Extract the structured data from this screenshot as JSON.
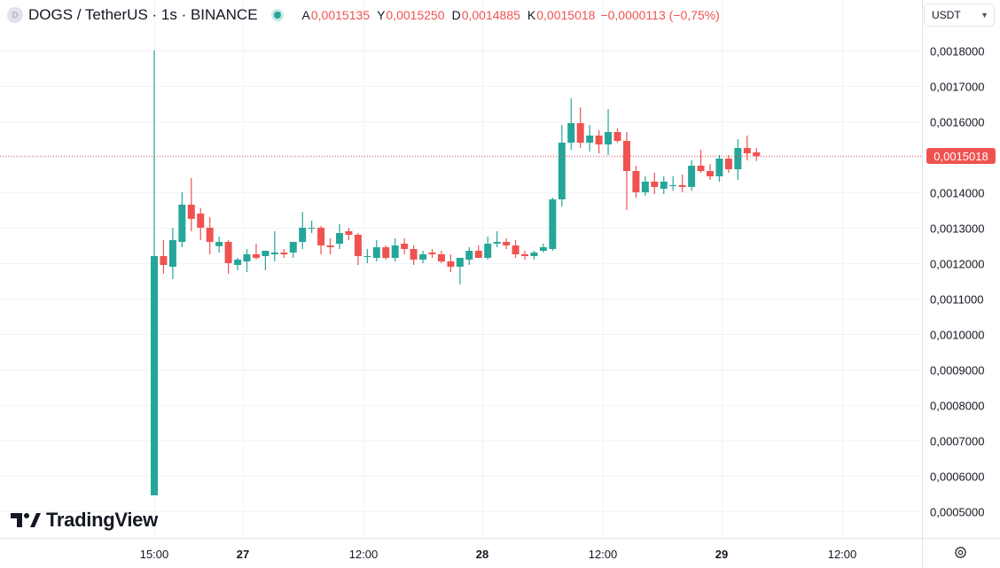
{
  "legend": {
    "logo_text": "D",
    "symbol": "DOGS / TetherUS · 1s · BINANCE",
    "open_label": "A",
    "open": "0,0015135",
    "high_label": "Y",
    "high": "0,0015250",
    "low_label": "D",
    "low": "0,0014885",
    "close_label": "K",
    "close": "0,0015018",
    "change": "−0,0000113 (−0,75%)"
  },
  "currency": "USDT",
  "brand": "TradingView",
  "last_price_label": "0,0015018",
  "colors": {
    "up": "#26a69a",
    "down": "#ef5350",
    "grid": "#f0f3fa",
    "axis_text": "#131722"
  },
  "price_ticks": [
    "0,0018000",
    "0,0017000",
    "0,0016000",
    "0,0015000",
    "0,0014000",
    "0,0013000",
    "0,0012000",
    "0,0011000",
    "0,0010000",
    "0,0009000",
    "0,0008000",
    "0,0007000",
    "0,0006000",
    "0,0005000"
  ],
  "time_ticks": [
    {
      "label": "15:00",
      "bold": false
    },
    {
      "label": "27",
      "bold": true
    },
    {
      "label": "12:00",
      "bold": false
    },
    {
      "label": "28",
      "bold": true
    },
    {
      "label": "12:00",
      "bold": false
    },
    {
      "label": "29",
      "bold": true
    },
    {
      "label": "12:00",
      "bold": false
    }
  ],
  "chart_data": {
    "type": "candlestick",
    "title": "DOGS / TetherUS · 1s · BINANCE",
    "ylim": [
      0.0004,
      0.0019
    ],
    "last_price": 0.0015018,
    "candles": [
      {
        "o": 0.000545,
        "h": 0.0018,
        "l": 0.000545,
        "c": 0.00122
      },
      {
        "o": 0.00122,
        "h": 0.001265,
        "l": 0.00117,
        "c": 0.001195
      },
      {
        "o": 0.00119,
        "h": 0.0013,
        "l": 0.001155,
        "c": 0.001265
      },
      {
        "o": 0.00126,
        "h": 0.0014,
        "l": 0.001245,
        "c": 0.001365
      },
      {
        "o": 0.001365,
        "h": 0.00144,
        "l": 0.00129,
        "c": 0.001325
      },
      {
        "o": 0.00134,
        "h": 0.001355,
        "l": 0.001265,
        "c": 0.0013
      },
      {
        "o": 0.0013,
        "h": 0.00133,
        "l": 0.001225,
        "c": 0.00126
      },
      {
        "o": 0.001248,
        "h": 0.001275,
        "l": 0.00123,
        "c": 0.00126
      },
      {
        "o": 0.00126,
        "h": 0.001265,
        "l": 0.00117,
        "c": 0.0012
      },
      {
        "o": 0.001195,
        "h": 0.001215,
        "l": 0.00118,
        "c": 0.00121
      },
      {
        "o": 0.001205,
        "h": 0.00124,
        "l": 0.001175,
        "c": 0.001225
      },
      {
        "o": 0.001225,
        "h": 0.001255,
        "l": 0.00121,
        "c": 0.001215
      },
      {
        "o": 0.00122,
        "h": 0.001235,
        "l": 0.00118,
        "c": 0.001235
      },
      {
        "o": 0.001225,
        "h": 0.00129,
        "l": 0.001205,
        "c": 0.00123
      },
      {
        "o": 0.00123,
        "h": 0.00124,
        "l": 0.001215,
        "c": 0.001225
      },
      {
        "o": 0.00123,
        "h": 0.00125,
        "l": 0.001215,
        "c": 0.00126
      },
      {
        "o": 0.00126,
        "h": 0.001345,
        "l": 0.00124,
        "c": 0.0013
      },
      {
        "o": 0.0013,
        "h": 0.00132,
        "l": 0.001285,
        "c": 0.0013
      },
      {
        "o": 0.0013,
        "h": 0.001305,
        "l": 0.001225,
        "c": 0.00125
      },
      {
        "o": 0.00125,
        "h": 0.00127,
        "l": 0.001225,
        "c": 0.001245
      },
      {
        "o": 0.001255,
        "h": 0.00131,
        "l": 0.00124,
        "c": 0.001285
      },
      {
        "o": 0.00129,
        "h": 0.0013,
        "l": 0.001265,
        "c": 0.00128
      },
      {
        "o": 0.00128,
        "h": 0.001285,
        "l": 0.001195,
        "c": 0.00122
      },
      {
        "o": 0.00122,
        "h": 0.00124,
        "l": 0.0012,
        "c": 0.00122
      },
      {
        "o": 0.001215,
        "h": 0.001265,
        "l": 0.001205,
        "c": 0.001245
      },
      {
        "o": 0.001245,
        "h": 0.00125,
        "l": 0.00121,
        "c": 0.001215
      },
      {
        "o": 0.001215,
        "h": 0.00127,
        "l": 0.001205,
        "c": 0.00125
      },
      {
        "o": 0.001255,
        "h": 0.00127,
        "l": 0.001225,
        "c": 0.00124
      },
      {
        "o": 0.00124,
        "h": 0.00125,
        "l": 0.001195,
        "c": 0.00121
      },
      {
        "o": 0.00121,
        "h": 0.001235,
        "l": 0.0012,
        "c": 0.001225
      },
      {
        "o": 0.00123,
        "h": 0.00124,
        "l": 0.001215,
        "c": 0.001225
      },
      {
        "o": 0.001225,
        "h": 0.001235,
        "l": 0.0012,
        "c": 0.001205
      },
      {
        "o": 0.001205,
        "h": 0.001225,
        "l": 0.001175,
        "c": 0.00119
      },
      {
        "o": 0.00119,
        "h": 0.001215,
        "l": 0.00114,
        "c": 0.001215
      },
      {
        "o": 0.00121,
        "h": 0.001245,
        "l": 0.001195,
        "c": 0.001235
      },
      {
        "o": 0.001235,
        "h": 0.00125,
        "l": 0.001215,
        "c": 0.001215
      },
      {
        "o": 0.001215,
        "h": 0.001275,
        "l": 0.00121,
        "c": 0.001255
      },
      {
        "o": 0.001255,
        "h": 0.00129,
        "l": 0.001245,
        "c": 0.00126
      },
      {
        "o": 0.00126,
        "h": 0.00127,
        "l": 0.00124,
        "c": 0.00125
      },
      {
        "o": 0.00125,
        "h": 0.001265,
        "l": 0.001215,
        "c": 0.001225
      },
      {
        "o": 0.001225,
        "h": 0.001235,
        "l": 0.00121,
        "c": 0.00122
      },
      {
        "o": 0.00122,
        "h": 0.001235,
        "l": 0.00121,
        "c": 0.00123
      },
      {
        "o": 0.001235,
        "h": 0.001255,
        "l": 0.00123,
        "c": 0.001245
      },
      {
        "o": 0.00124,
        "h": 0.001385,
        "l": 0.001235,
        "c": 0.00138
      },
      {
        "o": 0.00138,
        "h": 0.00159,
        "l": 0.00136,
        "c": 0.00154
      },
      {
        "o": 0.00154,
        "h": 0.001665,
        "l": 0.00152,
        "c": 0.001595
      },
      {
        "o": 0.001595,
        "h": 0.00164,
        "l": 0.001525,
        "c": 0.00154
      },
      {
        "o": 0.00154,
        "h": 0.00159,
        "l": 0.001515,
        "c": 0.00156
      },
      {
        "o": 0.00156,
        "h": 0.001575,
        "l": 0.00151,
        "c": 0.001535
      },
      {
        "o": 0.001535,
        "h": 0.001635,
        "l": 0.001505,
        "c": 0.00157
      },
      {
        "o": 0.00157,
        "h": 0.00158,
        "l": 0.00154,
        "c": 0.001545
      },
      {
        "o": 0.001545,
        "h": 0.00157,
        "l": 0.00135,
        "c": 0.00146
      },
      {
        "o": 0.00146,
        "h": 0.001475,
        "l": 0.001385,
        "c": 0.0014
      },
      {
        "o": 0.0014,
        "h": 0.001445,
        "l": 0.00139,
        "c": 0.00143
      },
      {
        "o": 0.00143,
        "h": 0.001455,
        "l": 0.001395,
        "c": 0.001415
      },
      {
        "o": 0.00141,
        "h": 0.001445,
        "l": 0.001395,
        "c": 0.00143
      },
      {
        "o": 0.00142,
        "h": 0.001445,
        "l": 0.001405,
        "c": 0.00142
      },
      {
        "o": 0.00142,
        "h": 0.00145,
        "l": 0.0014,
        "c": 0.001415
      },
      {
        "o": 0.001415,
        "h": 0.00149,
        "l": 0.001405,
        "c": 0.001475
      },
      {
        "o": 0.001475,
        "h": 0.00152,
        "l": 0.001455,
        "c": 0.00146
      },
      {
        "o": 0.00146,
        "h": 0.00148,
        "l": 0.001435,
        "c": 0.001445
      },
      {
        "o": 0.001445,
        "h": 0.001505,
        "l": 0.00143,
        "c": 0.001495
      },
      {
        "o": 0.001495,
        "h": 0.001505,
        "l": 0.001455,
        "c": 0.001465
      },
      {
        "o": 0.001465,
        "h": 0.00155,
        "l": 0.001435,
        "c": 0.001525
      },
      {
        "o": 0.001525,
        "h": 0.00156,
        "l": 0.00149,
        "c": 0.00151
      },
      {
        "o": 0.001513,
        "h": 0.001525,
        "l": 0.001488,
        "c": 0.001502
      }
    ]
  }
}
